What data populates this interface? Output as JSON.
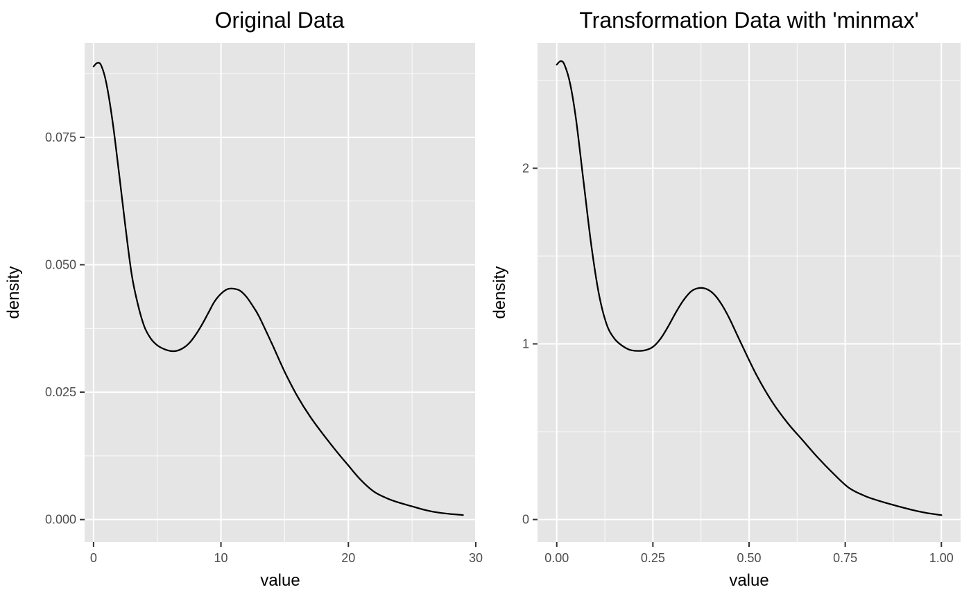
{
  "chart_data": [
    {
      "type": "line",
      "title": "Original Data",
      "xlabel": "value",
      "ylabel": "density",
      "xlim": [
        -0.7,
        30.0
      ],
      "ylim": [
        -0.0044,
        0.0935
      ],
      "x_ticks": [
        0,
        10,
        20,
        30
      ],
      "x_tick_labels": [
        "0",
        "10",
        "20",
        "30"
      ],
      "y_ticks": [
        0.0,
        0.025,
        0.05,
        0.075
      ],
      "y_tick_labels": [
        "0.000",
        "0.025",
        "0.050",
        "0.075"
      ],
      "grid": true,
      "series": [
        {
          "x": [
            0.0,
            0.3,
            0.6,
            1.0,
            1.5,
            2.0,
            2.5,
            3.0,
            3.5,
            4.0,
            4.5,
            5.0,
            5.5,
            6.0,
            6.5,
            7.0,
            7.5,
            8.0,
            8.5,
            9.0,
            9.5,
            10.0,
            10.5,
            11.0,
            11.5,
            12.0,
            12.5,
            13.0,
            14.0,
            15.0,
            16.0,
            17.0,
            18.0,
            19.0,
            20.0,
            21.0,
            22.0,
            23.0,
            24.0,
            25.0,
            26.0,
            27.0,
            28.0,
            29.0
          ],
          "values": [
            0.0889,
            0.0896,
            0.0891,
            0.0857,
            0.078,
            0.068,
            0.0575,
            0.048,
            0.042,
            0.0378,
            0.0355,
            0.0342,
            0.0335,
            0.0331,
            0.0331,
            0.0336,
            0.0346,
            0.0362,
            0.0382,
            0.0405,
            0.0428,
            0.0443,
            0.0452,
            0.0453,
            0.0449,
            0.0437,
            0.0419,
            0.0398,
            0.0345,
            0.029,
            0.0242,
            0.0202,
            0.0168,
            0.0136,
            0.0106,
            0.0077,
            0.0055,
            0.0042,
            0.0033,
            0.0026,
            0.0019,
            0.0014,
            0.0011,
            0.0009
          ]
        }
      ]
    },
    {
      "type": "line",
      "title": "Transformation Data with 'minmax'",
      "xlabel": "value",
      "ylabel": "density",
      "xlim": [
        -0.05,
        1.05
      ],
      "ylim": [
        -0.128,
        2.713
      ],
      "x_ticks": [
        0.0,
        0.25,
        0.5,
        0.75,
        1.0
      ],
      "x_tick_labels": [
        "0.00",
        "0.25",
        "0.50",
        "0.75",
        "1.00"
      ],
      "y_ticks": [
        0,
        1,
        2
      ],
      "y_tick_labels": [
        "0",
        "1",
        "2"
      ],
      "grid": true,
      "series": [
        {
          "x": [
            0.0,
            0.01,
            0.02,
            0.035,
            0.05,
            0.07,
            0.09,
            0.11,
            0.13,
            0.15,
            0.17,
            0.19,
            0.21,
            0.23,
            0.25,
            0.27,
            0.29,
            0.31,
            0.33,
            0.35,
            0.37,
            0.39,
            0.41,
            0.43,
            0.45,
            0.48,
            0.52,
            0.56,
            0.6,
            0.64,
            0.68,
            0.72,
            0.76,
            0.8,
            0.84,
            0.88,
            0.92,
            0.96,
            1.0
          ],
          "values": [
            2.59,
            2.61,
            2.59,
            2.48,
            2.28,
            1.92,
            1.56,
            1.28,
            1.11,
            1.03,
            0.99,
            0.966,
            0.96,
            0.964,
            0.983,
            1.03,
            1.1,
            1.18,
            1.25,
            1.3,
            1.318,
            1.312,
            1.28,
            1.22,
            1.14,
            1.0,
            0.82,
            0.67,
            0.55,
            0.45,
            0.35,
            0.26,
            0.18,
            0.135,
            0.105,
            0.08,
            0.057,
            0.038,
            0.025
          ]
        }
      ]
    }
  ]
}
